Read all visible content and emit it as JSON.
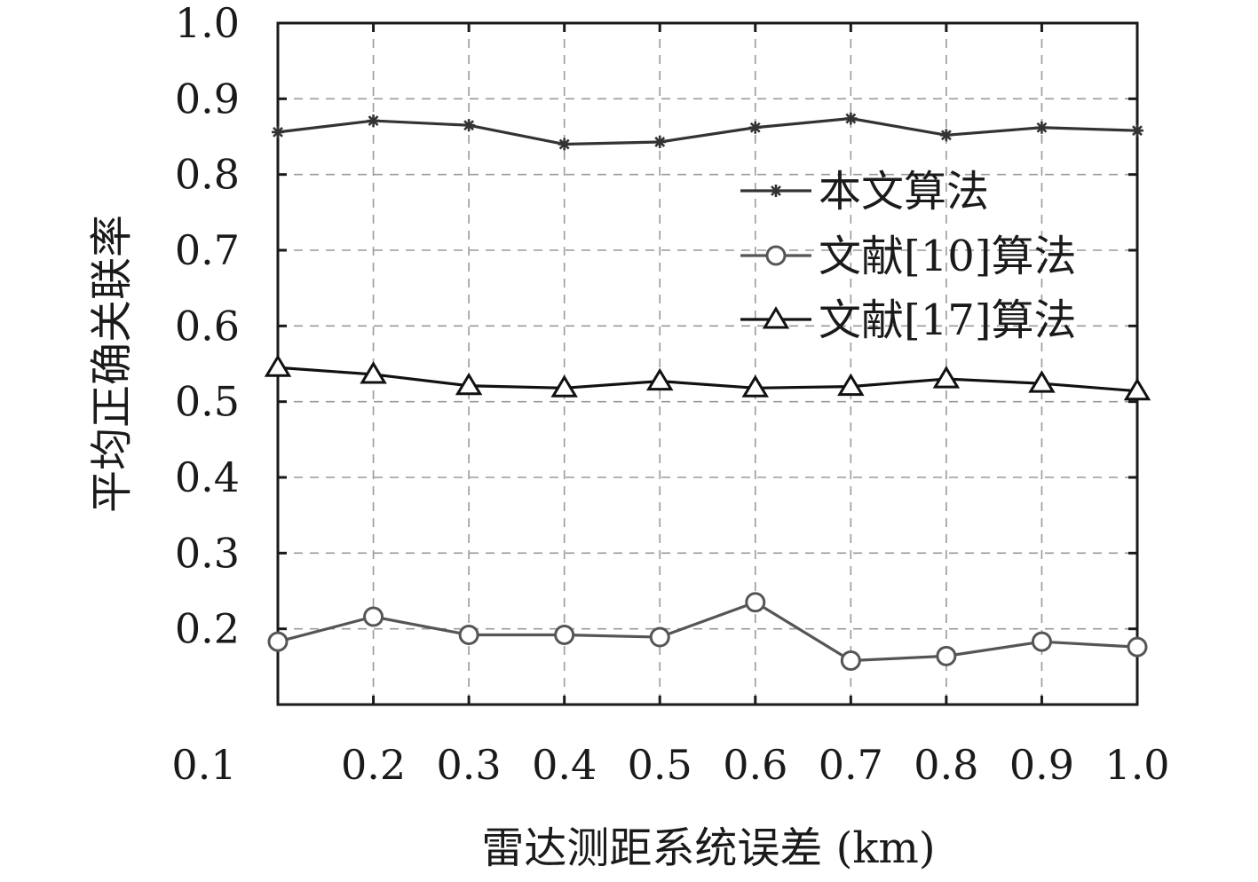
{
  "chart_data": {
    "type": "line",
    "x": [
      0.1,
      0.2,
      0.3,
      0.4,
      0.5,
      0.6,
      0.7,
      0.8,
      0.9,
      1.0
    ],
    "xticks": [
      "0.1",
      "0.2",
      "0.3",
      "0.4",
      "0.5",
      "0.6",
      "0.7",
      "0.8",
      "0.9",
      "1.0"
    ],
    "yticks": [
      "0.2",
      "0.3",
      "0.4",
      "0.5",
      "0.6",
      "0.7",
      "0.8",
      "0.9",
      "1.0"
    ],
    "xlim": [
      0.1,
      1.0
    ],
    "ylim": [
      0.1,
      1.0
    ],
    "xlabel": "雷达测距系统误差 (km)",
    "ylabel": "平均正确关联率",
    "grid": true,
    "legend_position": "upper-right",
    "series": [
      {
        "name": "本文算法",
        "marker": "star",
        "color": "#333333",
        "values": [
          0.856,
          0.871,
          0.865,
          0.84,
          0.843,
          0.862,
          0.874,
          0.852,
          0.862,
          0.858
        ]
      },
      {
        "name": "文献[10]算法",
        "marker": "circle",
        "color": "#555555",
        "values": [
          0.183,
          0.216,
          0.192,
          0.192,
          0.189,
          0.235,
          0.158,
          0.164,
          0.183,
          0.176
        ]
      },
      {
        "name": "文献[17]算法",
        "marker": "triangle",
        "color": "#111111",
        "values": [
          0.545,
          0.536,
          0.521,
          0.518,
          0.527,
          0.518,
          0.52,
          0.53,
          0.524,
          0.514
        ]
      }
    ]
  }
}
